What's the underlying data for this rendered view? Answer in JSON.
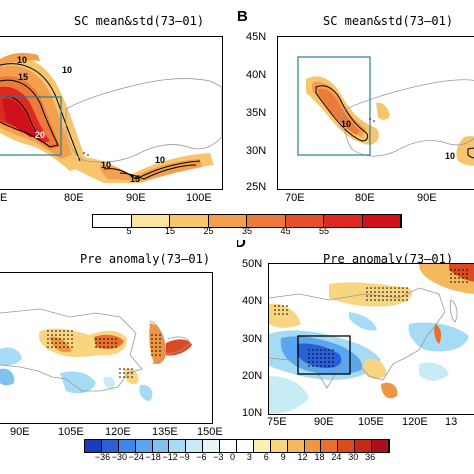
{
  "panels": {
    "A": {
      "letter": "",
      "title": "SC mean&std(73–01)",
      "x_ticks": [
        "E",
        "80E",
        "90E",
        "100E"
      ],
      "contour_labels": [
        "10",
        "15",
        "20",
        "10",
        "10",
        "15",
        "10"
      ]
    },
    "B": {
      "letter": "B",
      "title": "SC mean&std(73–01)",
      "x_ticks": [
        "70E",
        "80E",
        "90E"
      ],
      "y_ticks": [
        "45N",
        "40N",
        "35N",
        "30N",
        "25N"
      ],
      "contour_labels": [
        "10",
        "10"
      ]
    },
    "C": {
      "letter": "",
      "title": "Pre anomaly(73–01)",
      "x_ticks": [
        "90E",
        "105E",
        "120E",
        "135E",
        "150E"
      ]
    },
    "D": {
      "letter": "D",
      "title": "Pre anomaly(73–01)",
      "x_ticks": [
        "75E",
        "90E",
        "105E",
        "120E",
        "13"
      ],
      "y_ticks": [
        "50N",
        "40N",
        "30N",
        "20N",
        "10N"
      ]
    }
  },
  "colorbar_sc": {
    "labels": [
      "5",
      "15",
      "25",
      "35",
      "45",
      "55"
    ],
    "colors": [
      "#ffffff",
      "#fde3a0",
      "#f7c56e",
      "#f2a050",
      "#ec7a3a",
      "#e4502c",
      "#dc2a22",
      "#d0101a"
    ]
  },
  "colorbar_pre": {
    "labels": [
      "−36",
      "−30",
      "−24",
      "−18",
      "−12",
      "−9",
      "−6",
      "−3",
      "0",
      "3",
      "6",
      "9",
      "12",
      "18",
      "24",
      "30",
      "36"
    ],
    "colors": [
      "#1a3dbd",
      "#2a5fd6",
      "#3f86e8",
      "#5aa6f0",
      "#7fc2f2",
      "#a6dbf5",
      "#c8ecf5",
      "#e4f6f7",
      "#ffffff",
      "#ffffff",
      "#fcefb0",
      "#f8d680",
      "#f4b95c",
      "#ef9642",
      "#e8702f",
      "#dc4a22",
      "#c8281a",
      "#a8101a"
    ]
  }
}
